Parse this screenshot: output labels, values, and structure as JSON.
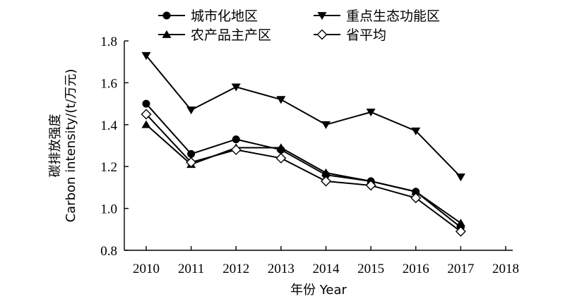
{
  "chart_data": {
    "type": "line",
    "title": "",
    "xlabel": "年份 Year",
    "ylabel_line1": "碳排放强度",
    "ylabel_line2": "Carbon intensity/(t/万元)",
    "xlim": [
      2010,
      2018
    ],
    "ylim": [
      0.8,
      1.8
    ],
    "x_ticks": [
      "2010",
      "2011",
      "2012",
      "2013",
      "2014",
      "2015",
      "2016",
      "2017",
      "2018"
    ],
    "y_ticks": [
      "0.8",
      "1.0",
      "1.2",
      "1.4",
      "1.6",
      "1.8"
    ],
    "legend_position": "top",
    "grid": false,
    "x": [
      2010,
      2011,
      2012,
      2013,
      2014,
      2015,
      2016,
      2017
    ],
    "series": [
      {
        "name": "城市化地区",
        "marker": "circle",
        "values": [
          1.5,
          1.26,
          1.33,
          1.28,
          1.16,
          1.13,
          1.08,
          0.91
        ]
      },
      {
        "name": "重点生态功能区",
        "marker": "triangle-down",
        "values": [
          1.73,
          1.47,
          1.58,
          1.52,
          1.4,
          1.46,
          1.37,
          1.15
        ]
      },
      {
        "name": "农产品主产区",
        "marker": "triangle-up",
        "values": [
          1.4,
          1.21,
          1.29,
          1.29,
          1.17,
          1.13,
          1.08,
          0.93
        ]
      },
      {
        "name": "省平均",
        "marker": "diamond-open",
        "values": [
          1.45,
          1.22,
          1.28,
          1.24,
          1.13,
          1.11,
          1.05,
          0.89
        ]
      }
    ]
  }
}
